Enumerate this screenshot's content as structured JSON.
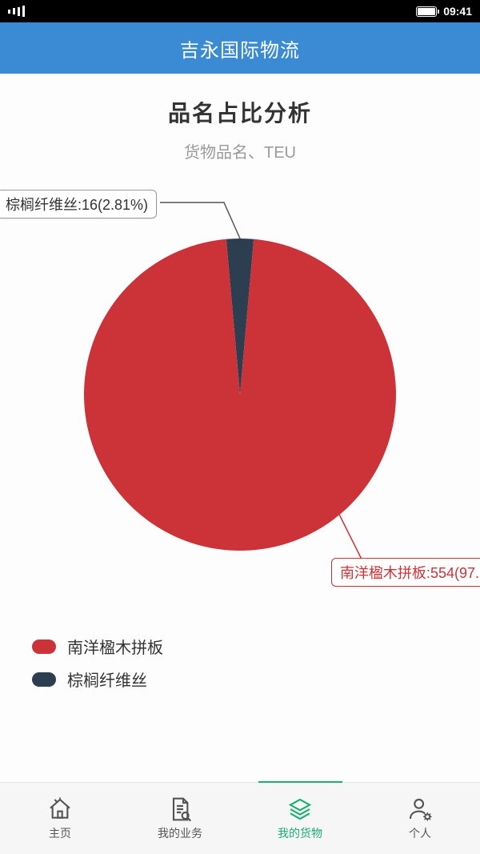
{
  "status": {
    "time": "09:41"
  },
  "header": {
    "title": "吉永国际物流"
  },
  "chart": {
    "type": "pie",
    "title": "品名占比分析",
    "subtitle": "货物品名、TEU",
    "title_fontsize": 28,
    "subtitle_fontsize": 20,
    "subtitle_color": "#9a9a9a",
    "background_color": "#fdfdfd",
    "radius": 195,
    "slices": [
      {
        "name": "南洋楹木拼板",
        "value": 554,
        "percent": 97.19,
        "color": "#cb3338"
      },
      {
        "name": "棕榈纤维丝",
        "value": 16,
        "percent": 2.81,
        "color": "#2c3e50"
      }
    ],
    "callouts": [
      {
        "text": "棕榈纤维丝:16(2.81%)",
        "color": "#333333"
      },
      {
        "text": "南洋楹木拼板:554(97.",
        "color": "#cb3338"
      }
    ],
    "legend_items": [
      {
        "label": "南洋楹木拼板",
        "color": "#cb3338"
      },
      {
        "label": "棕榈纤维丝",
        "color": "#2c3e50"
      }
    ]
  },
  "tabs": {
    "items": [
      {
        "label": "主页",
        "icon": "home-icon"
      },
      {
        "label": "我的业务",
        "icon": "document-search-icon"
      },
      {
        "label": "我的货物",
        "icon": "layers-icon"
      },
      {
        "label": "个人",
        "icon": "person-gear-icon"
      }
    ],
    "active_index": 2,
    "active_color": "#1aae72",
    "inactive_color": "#555555"
  }
}
